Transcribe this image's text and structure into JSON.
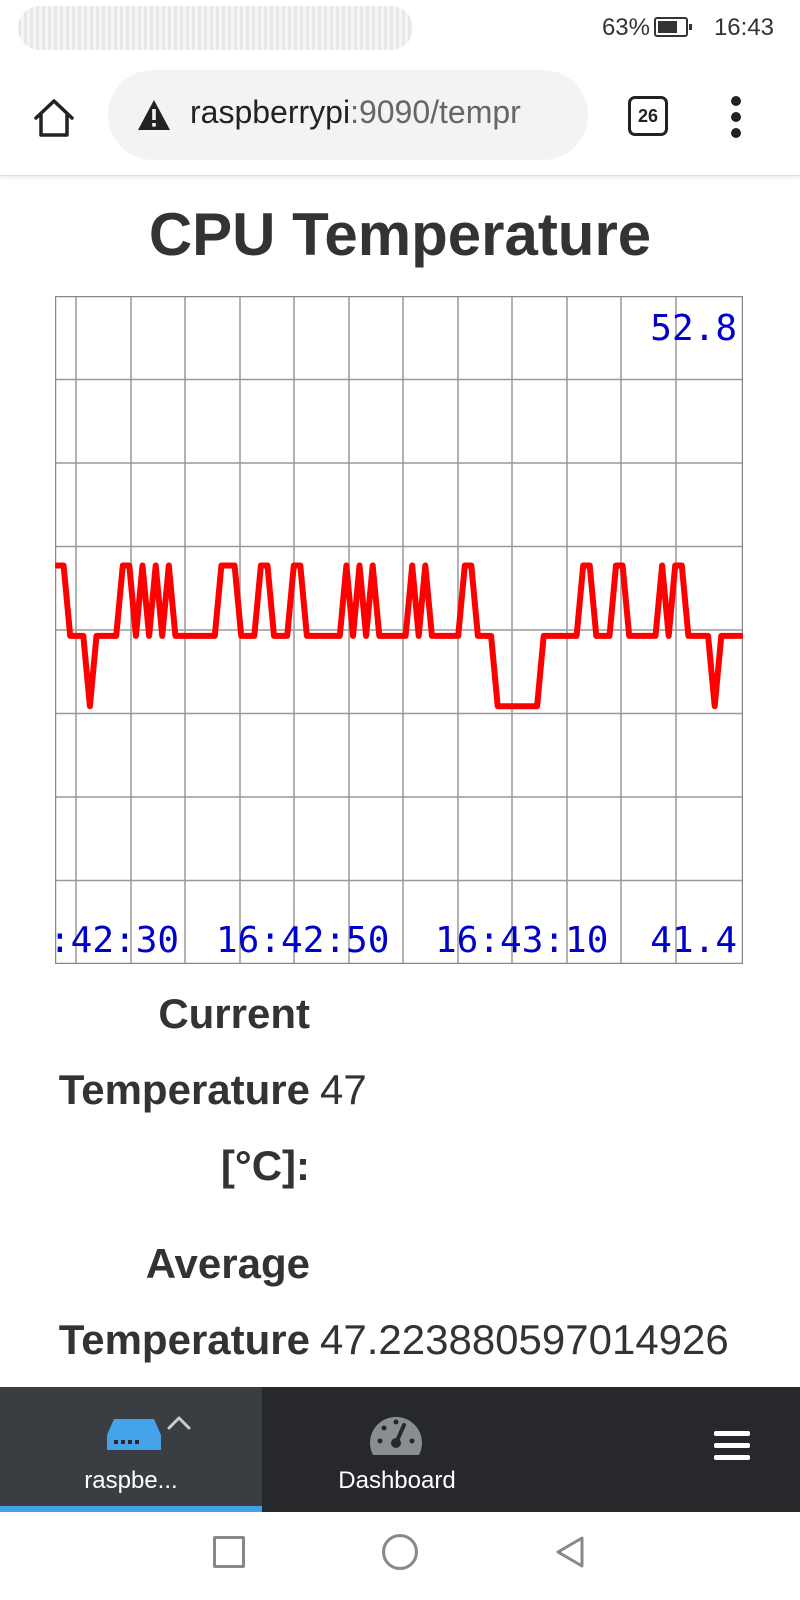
{
  "status_bar": {
    "battery": "63%",
    "time": "16:43"
  },
  "browser": {
    "url_host": "raspberrypi",
    "url_rest": ":9090/tempr",
    "tab_count": "26"
  },
  "page": {
    "title": "CPU Temperature",
    "current_label_1": "Current",
    "current_label_2": "Temperature",
    "current_label_3": "[°C]:",
    "current_value": "47",
    "average_label_1": "Average",
    "average_label_2": "Temperature",
    "average_value": "47.223880597014926"
  },
  "chart_data": {
    "type": "line",
    "ymax_label": "52.8",
    "ymin_label": "41.4",
    "ylim": [
      41.4,
      52.8
    ],
    "grid": true,
    "x_labels": [
      ":42:30",
      "16:42:50",
      "16:43:10"
    ],
    "line_color": "#ff0000",
    "label_color": "#0000cc",
    "values": [
      48.2,
      48.2,
      47,
      47,
      47,
      45.8,
      47,
      47,
      47,
      47,
      48.2,
      48.2,
      47,
      48.2,
      47,
      48.2,
      47,
      48.2,
      47,
      47,
      47,
      47,
      47,
      47,
      47,
      48.2,
      48.2,
      48.2,
      47,
      47,
      47,
      48.2,
      48.2,
      47,
      47,
      47,
      48.2,
      48.2,
      47,
      47,
      47,
      47,
      47,
      47,
      48.2,
      47,
      48.2,
      47,
      48.2,
      47,
      47,
      47,
      47,
      47,
      48.2,
      47,
      48.2,
      47,
      47,
      47,
      47,
      47,
      48.2,
      48.2,
      47,
      47,
      47,
      45.8,
      45.8,
      45.8,
      45.8,
      45.8,
      45.8,
      45.8,
      47,
      47,
      47,
      47,
      47,
      47,
      48.2,
      48.2,
      47,
      47,
      47,
      48.2,
      48.2,
      47,
      47,
      47,
      47,
      47,
      48.2,
      47,
      48.2,
      48.2,
      47,
      47,
      47,
      47,
      45.8,
      47,
      47,
      47,
      47
    ]
  },
  "bottom_nav": {
    "device_label": "raspbe...",
    "dashboard_label": "Dashboard"
  },
  "colors": {
    "accent": "#43a2e8",
    "nav_bg": "#26282c",
    "nav_active_bg": "#3a3d42"
  }
}
